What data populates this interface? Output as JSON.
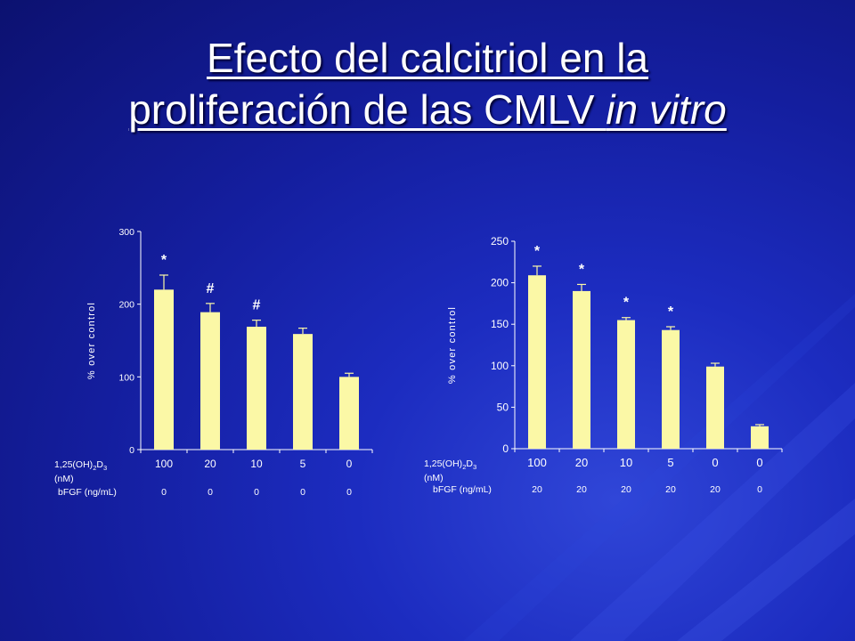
{
  "slide": {
    "title_part1": "Efecto del calcitriol en la",
    "title_part2": "proliferación de las CMLV ",
    "title_italic": "in vitro"
  },
  "colors": {
    "bar": "#fbf8a6",
    "axis": "#ffffff",
    "text": "#ffffff",
    "background": "#1a27b0"
  },
  "chart_data": [
    {
      "type": "bar",
      "ylabel": "% over control",
      "ylim": [
        0,
        300
      ],
      "yticks": [
        0,
        100,
        200,
        300
      ],
      "categories": [
        "100",
        "20",
        "10",
        "5",
        "0"
      ],
      "values": [
        220,
        189,
        169,
        159,
        100
      ],
      "errors": [
        20,
        12,
        9,
        8,
        5
      ],
      "annotations": [
        "*",
        "#",
        "#",
        "",
        ""
      ],
      "row_labels": {
        "calcitriol_label": "1,25(OH)",
        "calcitriol_sub1": "2",
        "calcitriol_mid": "D",
        "calcitriol_sub2": "3",
        "calcitriol_unit": "(nM)",
        "bfgf_label": "bFGF (ng/mL)"
      },
      "bfgf_values": [
        "0",
        "0",
        "0",
        "0",
        "0"
      ],
      "grid": false
    },
    {
      "type": "bar",
      "ylabel": "% over control",
      "ylim": [
        0,
        250
      ],
      "yticks": [
        0,
        50,
        100,
        150,
        200,
        250
      ],
      "categories": [
        "100",
        "20",
        "10",
        "5",
        "0",
        "0"
      ],
      "values": [
        209,
        190,
        155,
        143,
        99,
        27
      ],
      "errors": [
        11,
        8,
        3,
        4,
        4,
        2
      ],
      "annotations": [
        "*",
        "*",
        "*",
        "*",
        "",
        ""
      ],
      "row_labels": {
        "calcitriol_label": "1,25(OH)",
        "calcitriol_sub1": "2",
        "calcitriol_mid": "D",
        "calcitriol_sub2": "3",
        "calcitriol_unit": "(nM)",
        "bfgf_label": "bFGF (ng/mL)"
      },
      "bfgf_values": [
        "20",
        "20",
        "20",
        "20",
        "20",
        "0"
      ],
      "grid": false
    }
  ]
}
